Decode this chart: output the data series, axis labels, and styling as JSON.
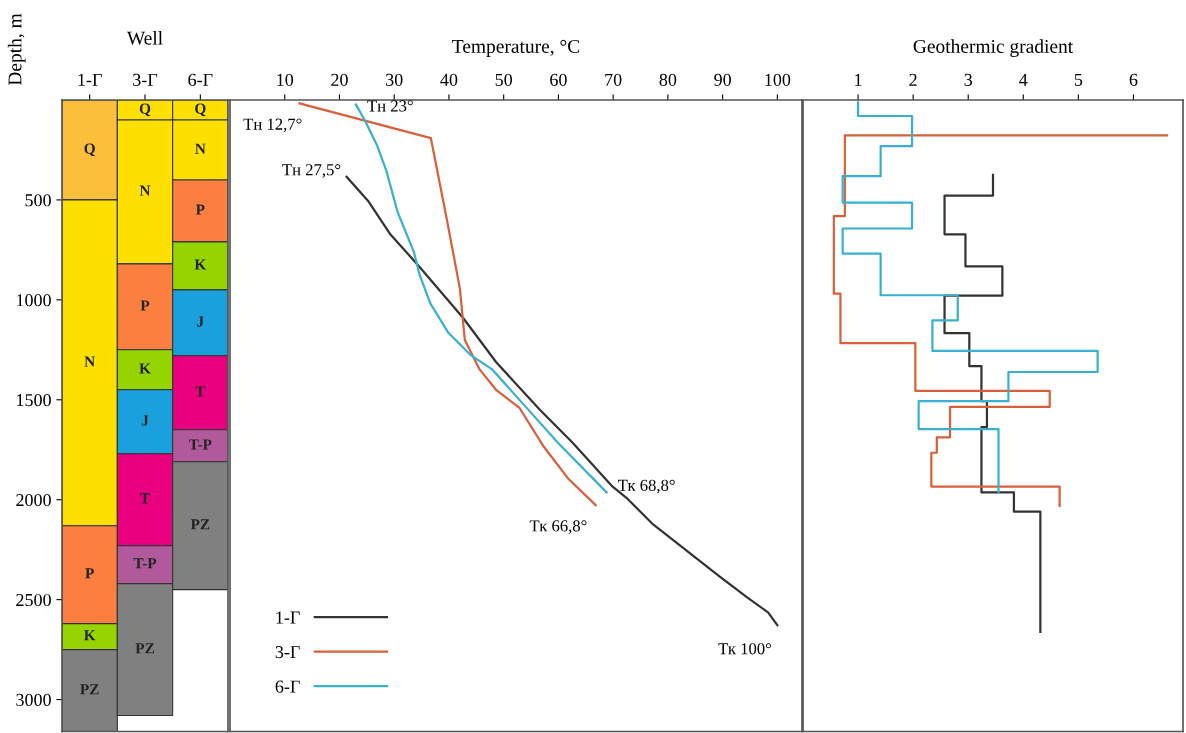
{
  "chart_data": [
    {
      "type": "bar",
      "title": "Well",
      "ylabel": "Depth, m",
      "categories": [
        "1-Г",
        "3-Г",
        "6-Г"
      ],
      "ylim": [
        3160,
        0
      ],
      "yticks": [
        500,
        1000,
        1500,
        2000,
        2500,
        3000
      ],
      "series": [
        {
          "values": [
            500,
            100,
            100
          ],
          "base": [
            0,
            0,
            0
          ],
          "colors": [
            "#fbbf3c",
            "#fde000",
            "#fde000"
          ],
          "value_labels": [
            "Q",
            "Q",
            "Q"
          ]
        },
        {
          "values": [
            1630,
            720,
            300
          ],
          "base": [
            500,
            100,
            100
          ],
          "colors": [
            "#fde000",
            "#fde000",
            "#fde000"
          ],
          "value_labels": [
            "N",
            "N",
            "N"
          ]
        },
        {
          "values": [
            490,
            430,
            310
          ],
          "base": [
            2130,
            820,
            400
          ],
          "colors": [
            "#fb8040",
            "#fb8040",
            "#fb8040"
          ],
          "value_labels": [
            "P",
            "P",
            "P"
          ]
        },
        {
          "values": [
            130,
            200,
            240
          ],
          "base": [
            2620,
            1250,
            710
          ],
          "colors": [
            "#96d400",
            "#96d400",
            "#96d400"
          ],
          "value_labels": [
            "K",
            "K",
            "K"
          ]
        },
        {
          "values": [
            null,
            320,
            330
          ],
          "base": [
            null,
            1450,
            950
          ],
          "colors": [
            null,
            "#1aa0dc",
            "#1aa0dc"
          ],
          "value_labels": [
            null,
            "J",
            "J"
          ]
        },
        {
          "values": [
            null,
            460,
            370
          ],
          "base": [
            null,
            1770,
            1280
          ],
          "colors": [
            null,
            "#e8007e",
            "#e8007e"
          ],
          "value_labels": [
            null,
            "T",
            "T"
          ]
        },
        {
          "values": [
            null,
            190,
            160
          ],
          "base": [
            null,
            2230,
            1650
          ],
          "colors": [
            null,
            "#b05a9c",
            "#b05a9c"
          ],
          "value_labels": [
            null,
            "T-P",
            "T-P"
          ]
        },
        {
          "values": [
            410,
            660,
            640
          ],
          "base": [
            2750,
            2420,
            1810
          ],
          "colors": [
            "#808080",
            "#808080",
            "#808080"
          ],
          "value_labels": [
            "PZ",
            "PZ",
            "PZ"
          ]
        }
      ]
    },
    {
      "type": "line",
      "title": "Temperature, °C",
      "xlim": [
        0,
        104.5
      ],
      "xticks": [
        10,
        20,
        30,
        40,
        50,
        60,
        70,
        80,
        90,
        100
      ],
      "ylim": [
        3160,
        0
      ],
      "tick_labels": "x",
      "legend": "bottom left",
      "series": [
        {
          "name": "1-Г",
          "color": "#333333",
          "x": [
            21.3,
            25.2,
            29.2,
            34.6,
            42.6,
            48.6,
            56.6,
            62.6,
            69.9,
            72.6,
            77.3,
            83.3,
            89.3,
            94.6,
            98.3,
            100
          ],
          "values": [
            384,
            504,
            669,
            834,
            1091,
            1311,
            1550,
            1715,
            1935,
            1995,
            2124,
            2252,
            2381,
            2491,
            2564,
            2628
          ]
        },
        {
          "name": "3-Г",
          "color": "#d9603b",
          "x": [
            12.7,
            36.7,
            39.6,
            42.0,
            42.9,
            45.6,
            48.6,
            52.9,
            57.3,
            61.9,
            66.8
          ],
          "values": [
            17,
            191,
            595,
            944,
            1201,
            1348,
            1450,
            1541,
            1734,
            1898,
            2027
          ]
        },
        {
          "name": "6-Г",
          "color": "#3ab0d0",
          "x": [
            23,
            24.6,
            26.9,
            28.6,
            30.6,
            33.6,
            34.6,
            36.6,
            39.9,
            43.9,
            47.9,
            53.3,
            59.9,
            68.8
          ],
          "values": [
            23,
            100,
            229,
            357,
            559,
            761,
            871,
            1018,
            1165,
            1275,
            1348,
            1513,
            1715,
            1963
          ]
        }
      ],
      "annotations": [
        {
          "text": "Тн 12,7°",
          "x": 12.7,
          "y": 17
        },
        {
          "text": "Тн 23°",
          "x": 23,
          "y": 23
        },
        {
          "text": "Тн 27,5°",
          "x": 21.3,
          "y": 384
        },
        {
          "text": "Тк 66,8°",
          "x": 66.8,
          "y": 2027
        },
        {
          "text": "Тк 68,8°",
          "x": 68.8,
          "y": 1963
        },
        {
          "text": "Тк 100°",
          "x": 100,
          "y": 2628
        }
      ]
    },
    {
      "type": "line",
      "title": "Geothermic gradient",
      "xlim": [
        0,
        6.9
      ],
      "xticks": [
        1,
        2,
        3,
        4,
        5,
        6
      ],
      "ylim": [
        3160,
        0
      ],
      "tick_labels": "x",
      "series": [
        {
          "color": "#333333",
          "x": [
            3.45,
            3.45,
            2.57,
            2.57,
            2.95,
            2.95,
            3.62,
            3.62,
            2.57,
            2.57,
            3.02,
            3.02,
            3.24,
            3.24,
            3.34,
            3.34,
            3.24,
            3.24,
            3.83,
            3.83,
            4.31,
            4.31
          ],
          "values": [
            375,
            478,
            478,
            672,
            672,
            833,
            833,
            979,
            979,
            1167,
            1167,
            1332,
            1332,
            1507,
            1507,
            1637,
            1637,
            1963,
            1963,
            2060,
            2060,
            2662
          ]
        },
        {
          "color": "#d9603b",
          "x": [
            6.61,
            0.76,
            0.76,
            0.56,
            0.56,
            0.68,
            0.68,
            2.04,
            2.04,
            4.48,
            4.48,
            2.67,
            2.67,
            2.43,
            2.43,
            2.33,
            2.33,
            4.66,
            4.66
          ],
          "values": [
            177,
            177,
            581,
            581,
            969,
            969,
            1216,
            1216,
            1455,
            1455,
            1536,
            1536,
            1688,
            1688,
            1765,
            1765,
            1934,
            1934,
            2031
          ]
        },
        {
          "color": "#3ab0d0",
          "x": [
            1.0,
            1.0,
            1.98,
            1.98,
            1.41,
            1.41,
            0.72,
            0.72,
            1.98,
            1.98,
            0.72,
            0.72,
            1.41,
            1.41,
            2.81,
            2.81,
            2.35,
            2.35,
            5.35,
            5.35,
            3.73,
            3.73,
            2.1,
            2.1,
            3.55,
            3.55
          ],
          "values": [
            12,
            80,
            80,
            231,
            231,
            381,
            381,
            513,
            513,
            643,
            643,
            769,
            769,
            977,
            977,
            1103,
            1103,
            1255,
            1255,
            1361,
            1361,
            1507,
            1507,
            1647,
            1647,
            1963
          ]
        }
      ]
    }
  ]
}
